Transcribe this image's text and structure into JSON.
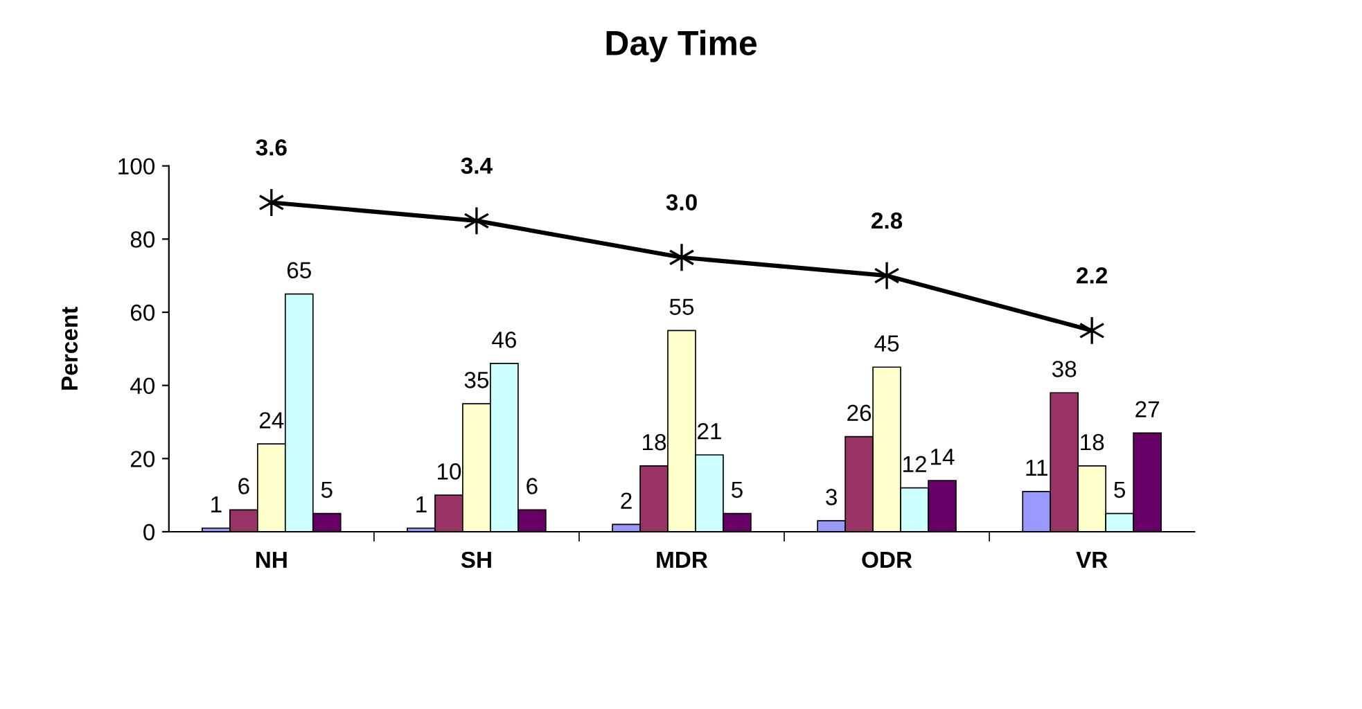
{
  "chart_data": {
    "type": "bar",
    "title": "Day Time",
    "ylabel": "Percent",
    "categories": [
      "NH",
      "SH",
      "MDR",
      "ODR",
      "VR"
    ],
    "series": [
      {
        "color": "#9999ff",
        "values": [
          1,
          1,
          2,
          3,
          11
        ]
      },
      {
        "color": "#993366",
        "values": [
          6,
          10,
          18,
          26,
          38
        ]
      },
      {
        "color": "#ffffcc",
        "values": [
          24,
          35,
          55,
          45,
          18
        ]
      },
      {
        "color": "#ccffff",
        "values": [
          65,
          46,
          21,
          12,
          5
        ]
      },
      {
        "color": "#660066",
        "values": [
          5,
          6,
          5,
          14,
          27
        ]
      },
      {
        "type": "line",
        "axis": "y2",
        "color": "#000000",
        "marker": "cross",
        "values": [
          3.6,
          3.4,
          3.0,
          2.8,
          2.2
        ],
        "value_labels": [
          "3.6",
          "3.4",
          "3.0",
          "2.8",
          "2.2"
        ]
      }
    ],
    "ylim": [
      0,
      100
    ],
    "yticks": [
      0,
      20,
      40,
      60,
      80,
      100
    ],
    "y2lim": [
      0,
      4
    ],
    "data_labels": true,
    "grid": false,
    "legend": false
  }
}
